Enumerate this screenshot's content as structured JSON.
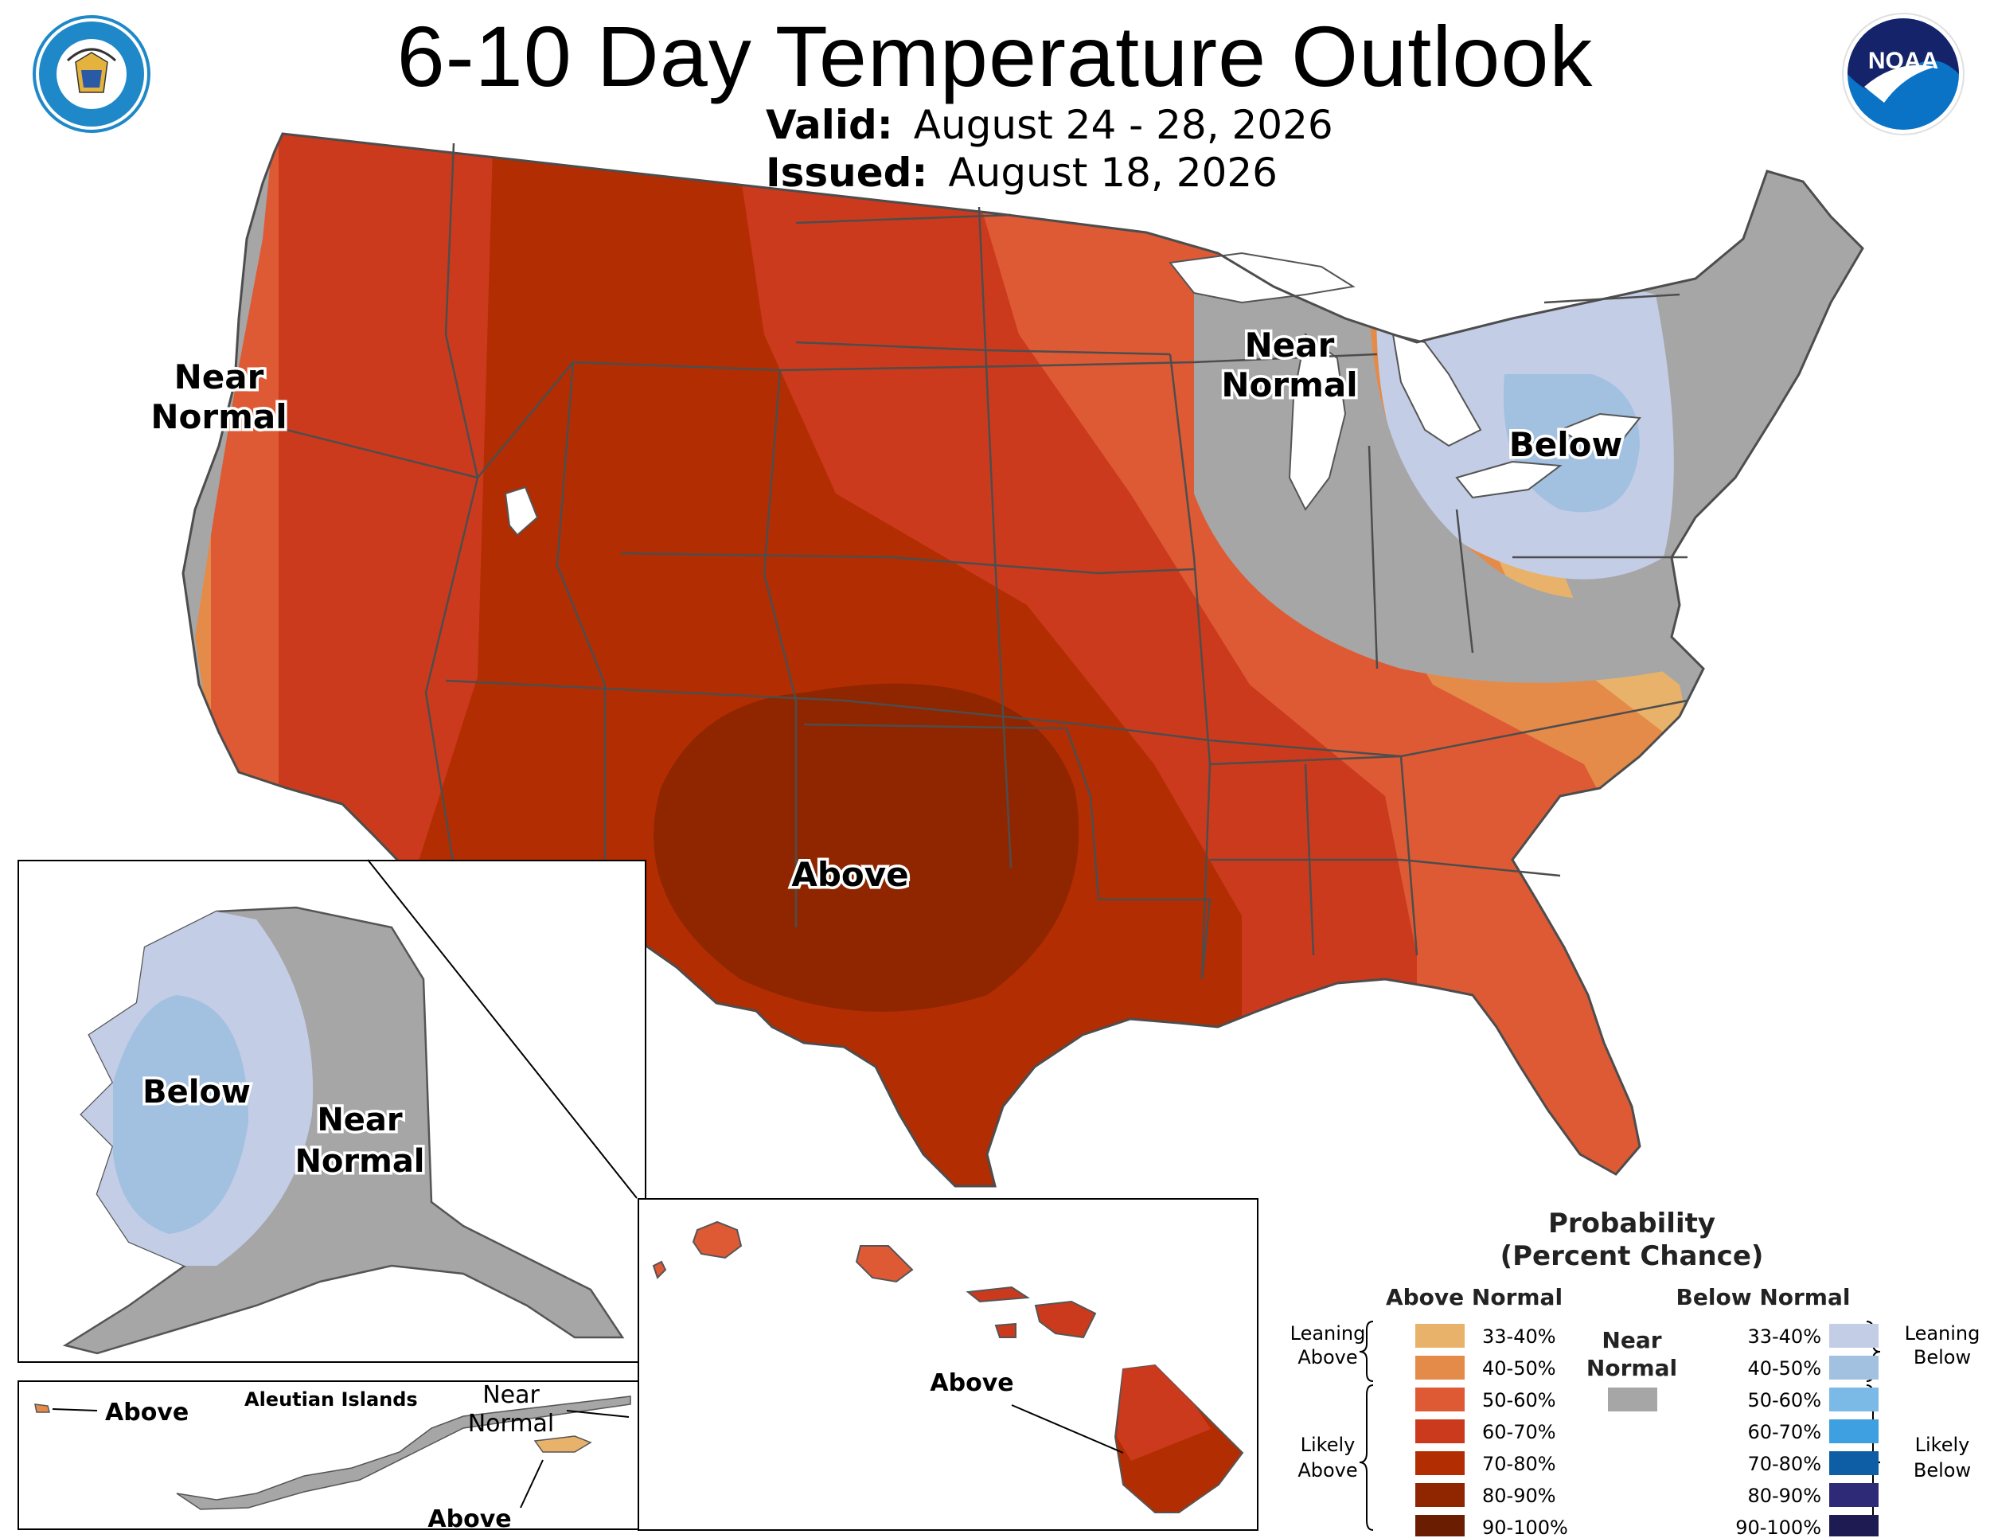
{
  "title": "6-10 Day Temperature Outlook",
  "valid_label": "Valid:",
  "valid_dates": "August 24 - 28, 2026",
  "issued_label": "Issued:",
  "issued_date": "August 18, 2026",
  "logos": {
    "left": "Department of Commerce seal (DEPARTMENT OF COMMERCE / UNITED STATES OF AMERICA)",
    "right": "NOAA"
  },
  "map_labels": {
    "near_normal_west": [
      "Near",
      "Normal"
    ],
    "near_normal_greatlakes": [
      "Near",
      "Normal"
    ],
    "below_northeast": "Below",
    "above_south": "Above",
    "alaska_below": "Below",
    "alaska_near_normal": [
      "Near",
      "Normal"
    ],
    "aleutian_title": "Aleutian Islands",
    "aleutian_above_west": "Above",
    "aleutian_near_normal": [
      "Near",
      "Normal"
    ],
    "aleutian_above_east": "Above",
    "hawaii_above": "Above"
  },
  "colors": {
    "above_33_40": "#e8b26a",
    "above_40_50": "#e58b49",
    "above_50_60": "#de5a34",
    "above_60_70": "#cc3a1d",
    "above_70_80": "#b32d02",
    "above_80_90": "#8f2600",
    "above_90_100": "#6b1d02",
    "near_normal": "#a6a6a6",
    "below_33_40": "#c3cde6",
    "below_40_50": "#a2c0e0",
    "below_50_60": "#7bb9e6",
    "below_60_70": "#3ea0e0",
    "below_70_80": "#0e5ea6",
    "below_80_90": "#2e2a78",
    "below_90_100": "#1e1a52"
  },
  "legend": {
    "title_line1": "Probability",
    "title_line2": "(Percent Chance)",
    "above_header": "Above Normal",
    "below_header": "Below Normal",
    "near_header": [
      "Near",
      "Normal"
    ],
    "leaning_above": [
      "Leaning",
      "Above"
    ],
    "likely_above": [
      "Likely",
      "Above"
    ],
    "leaning_below": [
      "Leaning",
      "Below"
    ],
    "likely_below": [
      "Likely",
      "Below"
    ],
    "above_rows": [
      {
        "label": "33-40%",
        "color": "#e8b26a"
      },
      {
        "label": "40-50%",
        "color": "#e58b49"
      },
      {
        "label": "50-60%",
        "color": "#de5a34"
      },
      {
        "label": "60-70%",
        "color": "#cc3a1d"
      },
      {
        "label": "70-80%",
        "color": "#b32d02"
      },
      {
        "label": "80-90%",
        "color": "#8f2600"
      },
      {
        "label": "90-100%",
        "color": "#6b1d02"
      }
    ],
    "below_rows": [
      {
        "label": "33-40%",
        "color": "#c3cde6"
      },
      {
        "label": "40-50%",
        "color": "#a2c0e0"
      },
      {
        "label": "50-60%",
        "color": "#7bb9e6"
      },
      {
        "label": "60-70%",
        "color": "#3ea0e0"
      },
      {
        "label": "70-80%",
        "color": "#0e5ea6"
      },
      {
        "label": "80-90%",
        "color": "#2e2a78"
      },
      {
        "label": "90-100%",
        "color": "#1e1a52"
      }
    ]
  }
}
